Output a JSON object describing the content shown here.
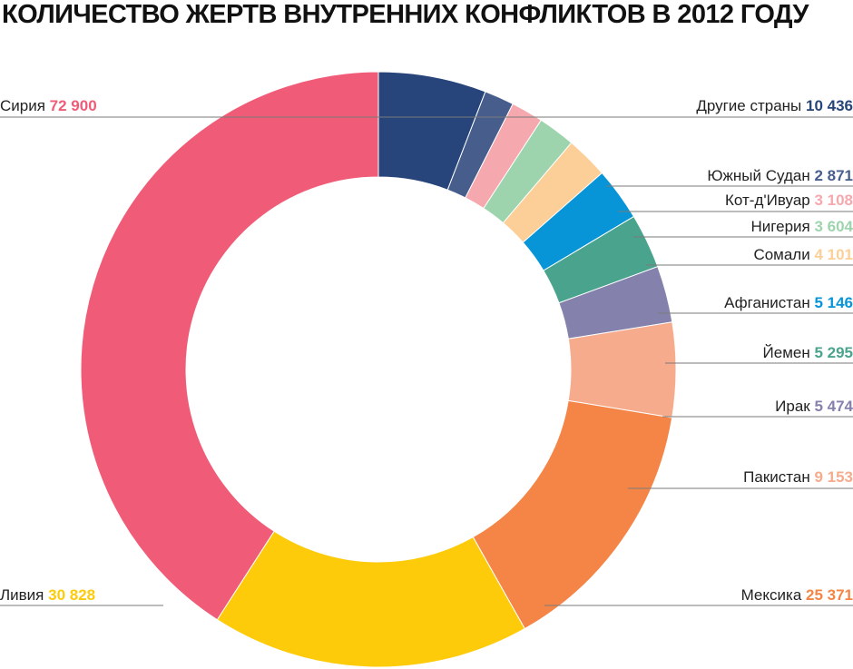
{
  "chart_data": {
    "type": "pie",
    "title": "КОЛИЧЕСТВО ЖЕРТВ ВНУТРЕННИХ КОНФЛИКТОВ В 2012 ГОДУ",
    "slices": [
      {
        "label": "Другие страны",
        "value": 10436,
        "value_label": "10 436",
        "color": "#27457a"
      },
      {
        "label": "Южный Судан",
        "value": 2871,
        "value_label": "2 871",
        "color": "#475e8c"
      },
      {
        "label": "Кот-д'Ивуар",
        "value": 3108,
        "value_label": "3 108",
        "color": "#f5a8ad"
      },
      {
        "label": "Нигерия",
        "value": 3604,
        "value_label": "3 604",
        "color": "#9dd4ad"
      },
      {
        "label": "Сомали",
        "value": 4101,
        "value_label": "4 101",
        "color": "#fccf98"
      },
      {
        "label": "Афганистан",
        "value": 5146,
        "value_label": "5 146",
        "color": "#0795d8"
      },
      {
        "label": "Йемен",
        "value": 5295,
        "value_label": "5 295",
        "color": "#4aa38d"
      },
      {
        "label": "Ирак",
        "value": 5474,
        "value_label": "5 474",
        "color": "#8482ac"
      },
      {
        "label": "Пакистан",
        "value": 9153,
        "value_label": "9 153",
        "color": "#f6ab8c"
      },
      {
        "label": "Мексика",
        "value": 25371,
        "value_label": "25 371",
        "color": "#f48547"
      },
      {
        "label": "Ливия",
        "value": 30828,
        "value_label": "30 828",
        "color": "#fecb0a"
      },
      {
        "label": "Сирия",
        "value": 72900,
        "value_label": "72 900",
        "color": "#f05c77"
      }
    ]
  }
}
